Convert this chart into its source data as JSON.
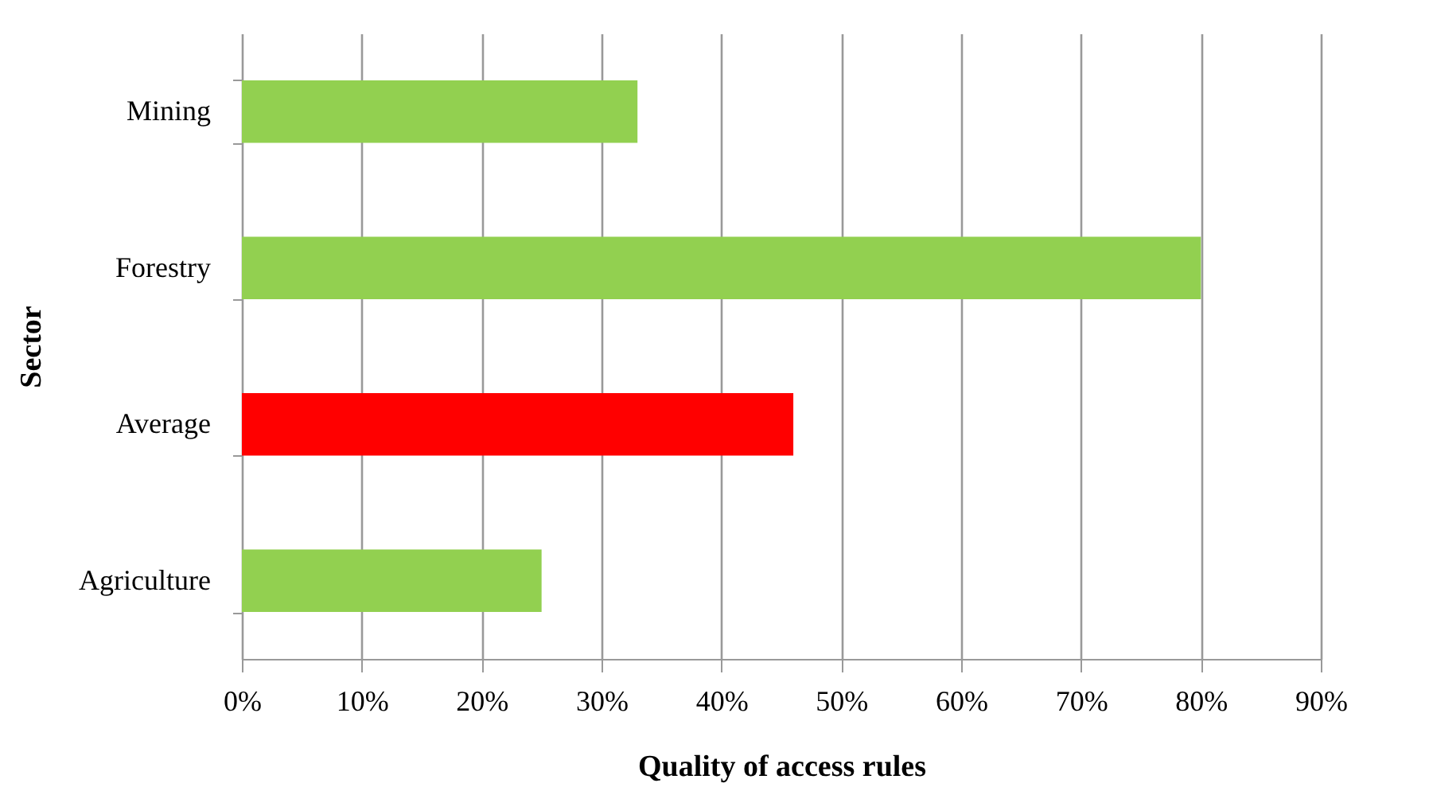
{
  "chart_data": {
    "type": "bar",
    "orientation": "horizontal",
    "categories": [
      "Mining",
      "Forestry",
      "Average",
      "Agriculture"
    ],
    "values": [
      33,
      80,
      46,
      25
    ],
    "colors": [
      "#92d050",
      "#92d050",
      "#ff0000",
      "#92d050"
    ],
    "xlabel": "Quality of access rules",
    "ylabel": "Sector",
    "xlim": [
      0,
      90
    ],
    "xticks": [
      {
        "value": 0,
        "label": "0%"
      },
      {
        "value": 10,
        "label": "10%"
      },
      {
        "value": 20,
        "label": "20%"
      },
      {
        "value": 30,
        "label": "30%"
      },
      {
        "value": 40,
        "label": "40%"
      },
      {
        "value": 50,
        "label": "50%"
      },
      {
        "value": 60,
        "label": "60%"
      },
      {
        "value": 70,
        "label": "70%"
      },
      {
        "value": 80,
        "label": "80%"
      },
      {
        "value": 90,
        "label": "90%"
      }
    ],
    "grid": "x"
  }
}
